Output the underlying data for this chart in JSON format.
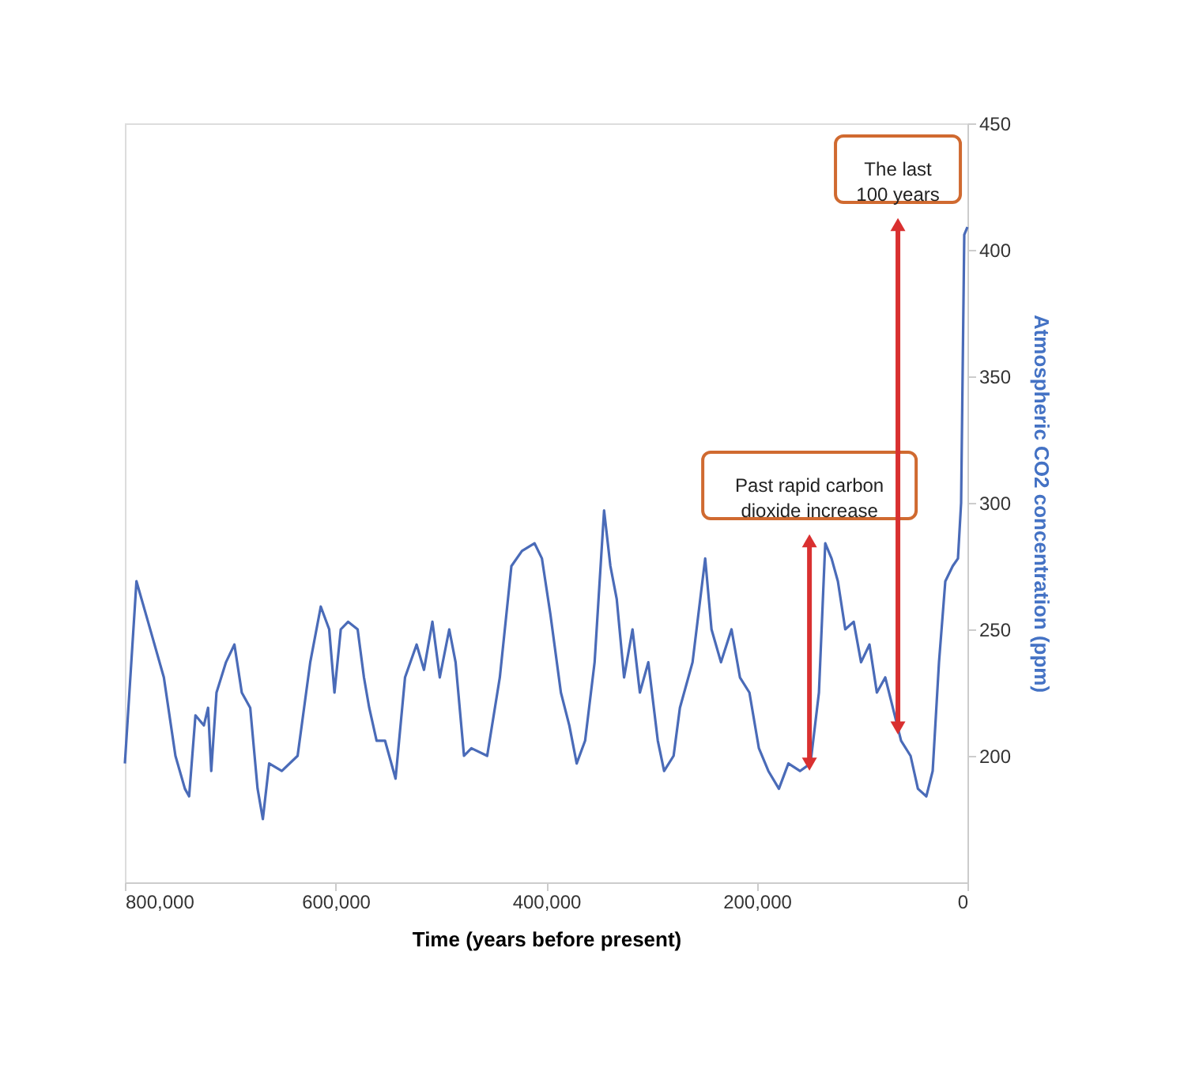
{
  "chart_data": {
    "type": "line",
    "xlabel": "Time (years before present)",
    "ylabel": "Atmospheric CO2 concentration (ppm)",
    "xlim": [
      800000,
      0
    ],
    "xticks": [
      {
        "value": 800000,
        "label": "800,000"
      },
      {
        "value": 600000,
        "label": "600,000"
      },
      {
        "value": 400000,
        "label": "400,000"
      },
      {
        "value": 200000,
        "label": "200,000"
      },
      0
    ],
    "ylim": [
      150,
      450
    ],
    "yticks": [
      200,
      250,
      300,
      350,
      400,
      450
    ],
    "grid": false,
    "marker": "none",
    "line_style": "solid",
    "x": [
      800000,
      789000,
      778000,
      763000,
      752000,
      743000,
      739000,
      733000,
      725000,
      721000,
      718000,
      713000,
      704000,
      696000,
      689000,
      681000,
      674000,
      669000,
      663000,
      651000,
      636000,
      624000,
      614000,
      606000,
      601000,
      595000,
      588000,
      579000,
      573000,
      568000,
      561000,
      553000,
      543000,
      534000,
      523000,
      516000,
      508000,
      501000,
      492000,
      486000,
      478000,
      471000,
      456000,
      444000,
      433000,
      423000,
      411000,
      404000,
      396000,
      386000,
      378000,
      371000,
      363000,
      354000,
      345000,
      339000,
      333000,
      326000,
      318000,
      311000,
      303000,
      294000,
      288000,
      279000,
      273000,
      261000,
      249000,
      243000,
      234000,
      224000,
      216000,
      207000,
      198000,
      189000,
      179000,
      170000,
      159000,
      149000,
      141000,
      135000,
      129000,
      123000,
      116000,
      108000,
      101000,
      93000,
      86000,
      78000,
      69000,
      63000,
      54000,
      47000,
      39000,
      33000,
      27000,
      21000,
      14000,
      9000,
      6000,
      3000,
      0
    ],
    "series": [
      {
        "color": "#4a6bb8",
        "values": [
          197,
          269,
          253,
          231,
          200,
          187,
          184,
          216,
          212,
          219,
          194,
          225,
          237,
          244,
          225,
          219,
          187,
          175,
          197,
          194,
          200,
          237,
          259,
          250,
          225,
          250,
          253,
          250,
          231,
          219,
          206,
          206,
          191,
          231,
          244,
          234,
          253,
          231,
          250,
          237,
          200,
          203,
          200,
          231,
          275,
          281,
          284,
          278,
          256,
          225,
          212,
          197,
          206,
          237,
          297,
          275,
          262,
          231,
          250,
          225,
          237,
          206,
          194,
          200,
          219,
          237,
          278,
          250,
          237,
          250,
          231,
          225,
          203,
          194,
          187,
          197,
          194,
          197,
          225,
          284,
          278,
          269,
          250,
          253,
          237,
          244,
          225,
          231,
          216,
          206,
          200,
          187,
          184,
          194,
          237,
          269,
          275,
          278,
          300,
          406,
          409
        ]
      }
    ],
    "annotations": [
      {
        "text": "Past rapid carbon dioxide increase",
        "x": 150000,
        "y": 285
      },
      {
        "text": "The last 100 years",
        "x": 66000,
        "y": 410
      }
    ]
  }
}
